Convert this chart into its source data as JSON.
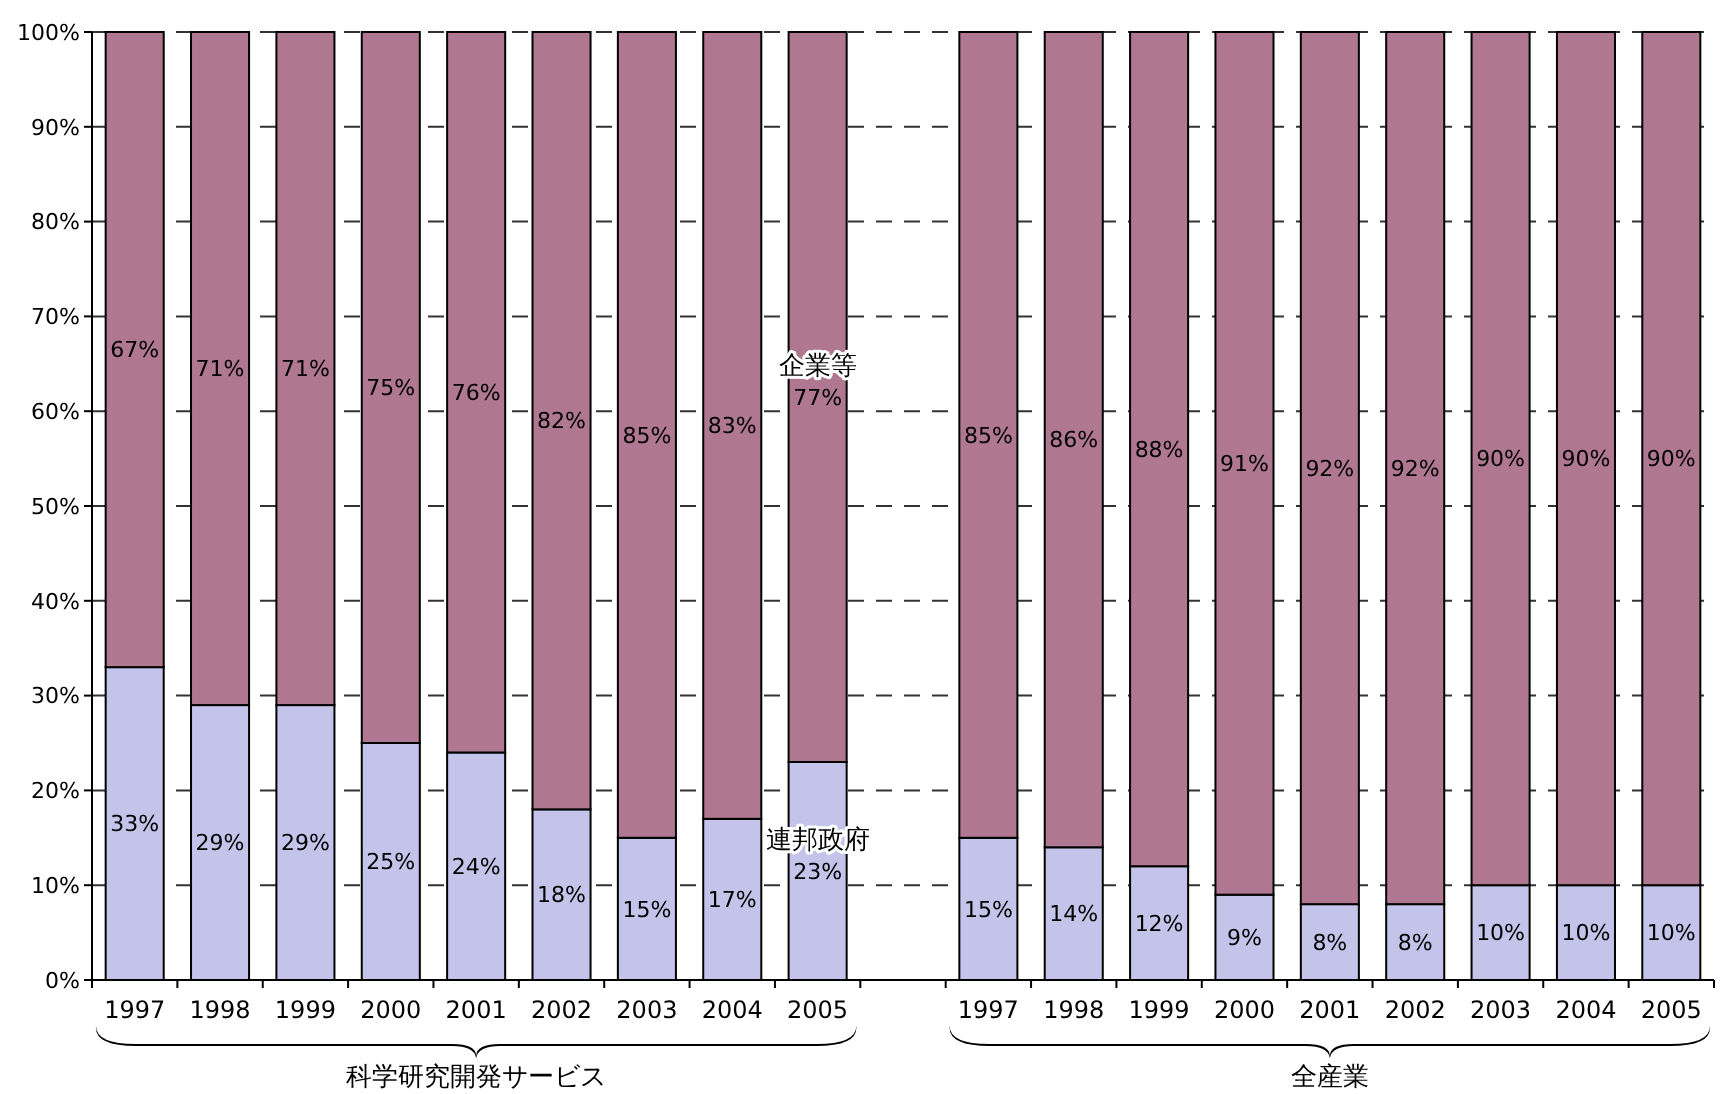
{
  "chart_data": {
    "type": "bar",
    "stacked": true,
    "categories": [
      "1997",
      "1998",
      "1999",
      "2000",
      "2001",
      "2002",
      "2003",
      "2004",
      "2005",
      null,
      "1997",
      "1998",
      "1999",
      "2000",
      "2001",
      "2002",
      "2003",
      "2004",
      "2005"
    ],
    "series": [
      {
        "name": "連邦政府",
        "color": "#c4c4ea",
        "values": [
          33,
          29,
          29,
          25,
          24,
          18,
          15,
          17,
          23,
          null,
          15,
          14,
          12,
          9,
          8,
          8,
          10,
          10,
          10
        ],
        "value_labels": [
          "33%",
          "29%",
          "29%",
          "25%",
          "24%",
          "18%",
          "15%",
          "17%",
          "23%",
          null,
          "15%",
          "14%",
          "12%",
          "9%",
          "8%",
          "8%",
          "10%",
          "10%",
          "10%"
        ]
      },
      {
        "name": "企業等",
        "color": "#b07890",
        "values": [
          67,
          71,
          71,
          75,
          76,
          82,
          85,
          83,
          77,
          null,
          85,
          86,
          88,
          91,
          92,
          92,
          90,
          90,
          90
        ],
        "value_labels": [
          "67%",
          "71%",
          "71%",
          "75%",
          "76%",
          "82%",
          "85%",
          "83%",
          "77%",
          null,
          "85%",
          "86%",
          "88%",
          "91%",
          "92%",
          "92%",
          "90%",
          "90%",
          "90%"
        ]
      }
    ],
    "ylim": [
      0,
      100
    ],
    "yticks": [
      {
        "value": 0,
        "label": "0%"
      },
      {
        "value": 10,
        "label": "10%"
      },
      {
        "value": 20,
        "label": "20%"
      },
      {
        "value": 30,
        "label": "30%"
      },
      {
        "value": 40,
        "label": "40%"
      },
      {
        "value": 50,
        "label": "50%"
      },
      {
        "value": 60,
        "label": "60%"
      },
      {
        "value": 70,
        "label": "70%"
      },
      {
        "value": 80,
        "label": "80%"
      },
      {
        "value": 90,
        "label": "90%"
      },
      {
        "value": 100,
        "label": "100%"
      }
    ],
    "grid": "y",
    "annotations": [
      "科学研究開発サービス",
      "全産業"
    ]
  }
}
